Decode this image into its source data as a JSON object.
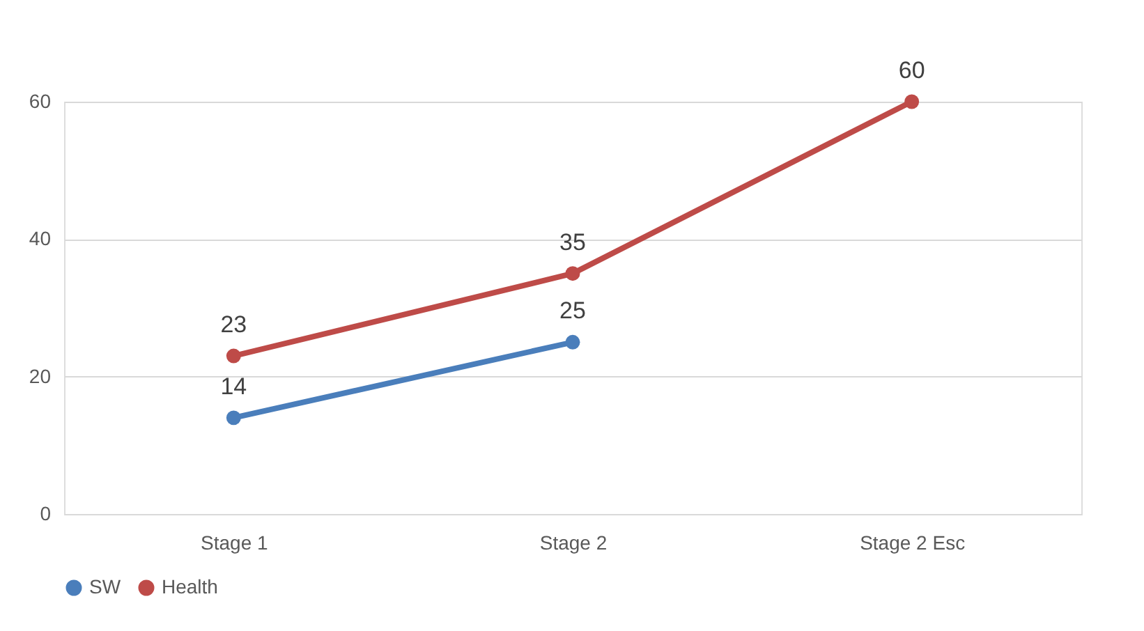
{
  "chart_data": {
    "type": "line",
    "categories": [
      "Stage 1",
      "Stage 2",
      "Stage 2 Esc"
    ],
    "series": [
      {
        "name": "SW",
        "color": "#4a7ebb",
        "values": [
          14,
          25,
          null
        ]
      },
      {
        "name": "Health",
        "color": "#be4b48",
        "values": [
          23,
          35,
          60
        ]
      }
    ],
    "ylim": [
      0,
      60
    ],
    "yticks": [
      0,
      20,
      40,
      60
    ],
    "grid": "y",
    "legend": "bottom",
    "marker": "circle",
    "line_style": "solid",
    "data_labels": true
  }
}
